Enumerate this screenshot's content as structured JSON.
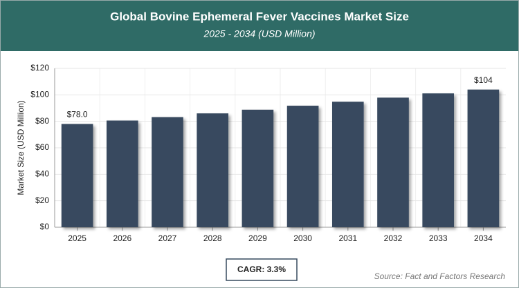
{
  "chart_data": {
    "type": "bar",
    "title": "Global Bovine Ephemeral Fever Vaccines Market Size",
    "subtitle": "2025 - 2034 (USD Million)",
    "y_label": "Market Size (USD Million)",
    "categories": [
      "2025",
      "2026",
      "2027",
      "2028",
      "2029",
      "2030",
      "2031",
      "2032",
      "2033",
      "2034"
    ],
    "values": [
      78.0,
      80.6,
      83.2,
      86.0,
      88.8,
      91.8,
      94.8,
      97.9,
      101.1,
      104
    ],
    "value_labels": [
      "$78.0",
      null,
      null,
      null,
      null,
      null,
      null,
      null,
      null,
      "$104"
    ],
    "color": "#374a5e",
    "ylim": [
      0,
      120
    ],
    "yticks": [
      {
        "value": 0,
        "label": "$0"
      },
      {
        "value": 20,
        "label": "$20"
      },
      {
        "value": 40,
        "label": "$40"
      },
      {
        "value": 60,
        "label": "$60"
      },
      {
        "value": 80,
        "label": "$80"
      },
      {
        "value": 100,
        "label": "$100"
      },
      {
        "value": 120,
        "label": "$120"
      }
    ],
    "grid": true,
    "cagr": "CAGR: 3.3%",
    "source": "Source: Fact and Factors Research"
  }
}
